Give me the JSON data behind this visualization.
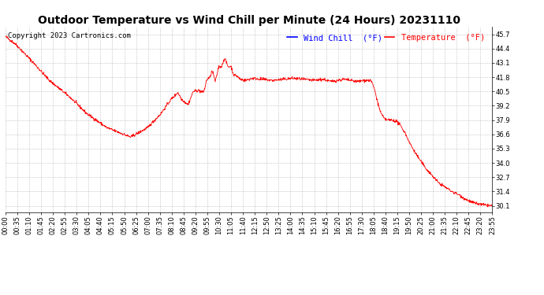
{
  "title": "Outdoor Temperature vs Wind Chill per Minute (24 Hours) 20231110",
  "copyright_text": "Copyright 2023 Cartronics.com",
  "legend_wind_chill": "Wind Chill  (°F)",
  "legend_temperature": "Temperature  (°F)",
  "wind_chill_color": "blue",
  "temperature_color": "red",
  "line_color": "red",
  "background_color": "white",
  "grid_color": "#bbbbbb",
  "ylim_min": 29.5,
  "ylim_max": 46.4,
  "yticks": [
    30.1,
    31.4,
    32.7,
    34.0,
    35.3,
    36.6,
    37.9,
    39.2,
    40.5,
    41.8,
    43.1,
    44.4,
    45.7
  ],
  "x_tick_labels": [
    "00:00",
    "00:35",
    "01:10",
    "01:45",
    "02:20",
    "02:55",
    "03:30",
    "04:05",
    "04:40",
    "05:15",
    "05:50",
    "06:25",
    "07:00",
    "07:35",
    "08:10",
    "08:45",
    "09:20",
    "09:55",
    "10:30",
    "11:05",
    "11:40",
    "12:15",
    "12:50",
    "13:25",
    "14:00",
    "14:35",
    "15:10",
    "15:45",
    "16:20",
    "16:55",
    "17:30",
    "18:05",
    "18:40",
    "19:15",
    "19:50",
    "20:25",
    "21:00",
    "21:35",
    "22:10",
    "22:45",
    "23:20",
    "23:55"
  ],
  "title_fontsize": 10,
  "copyright_fontsize": 6.5,
  "tick_fontsize": 6,
  "legend_fontsize": 7.5,
  "figwidth": 6.9,
  "figheight": 3.75,
  "dpi": 100
}
